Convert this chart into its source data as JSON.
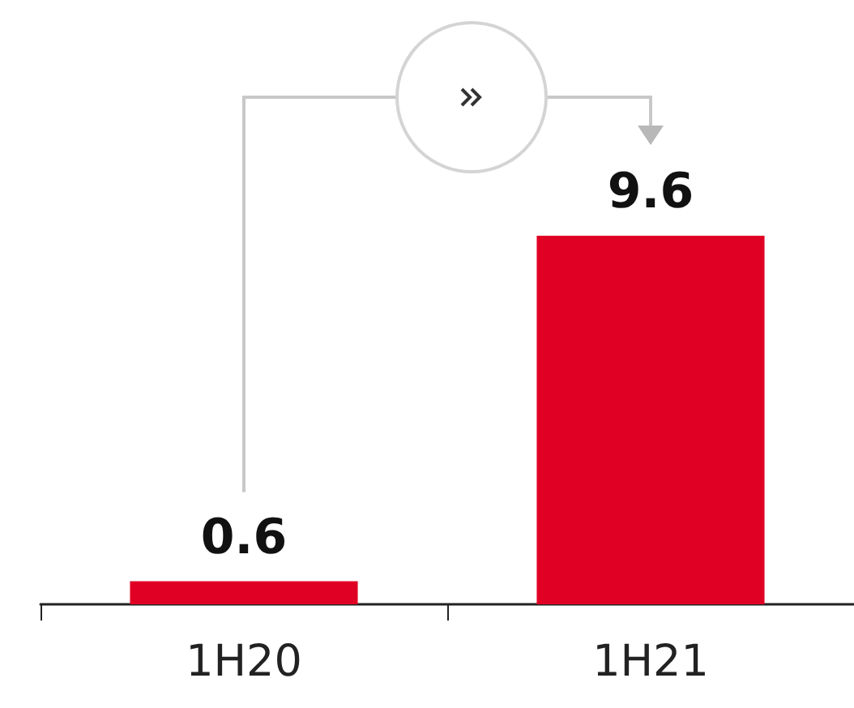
{
  "chart_data": {
    "type": "bar",
    "categories": [
      "1H20",
      "1H21"
    ],
    "values": [
      0.6,
      9.6
    ],
    "colors": [
      "#e00024",
      "#e00024"
    ],
    "data_labels": true
  }
}
